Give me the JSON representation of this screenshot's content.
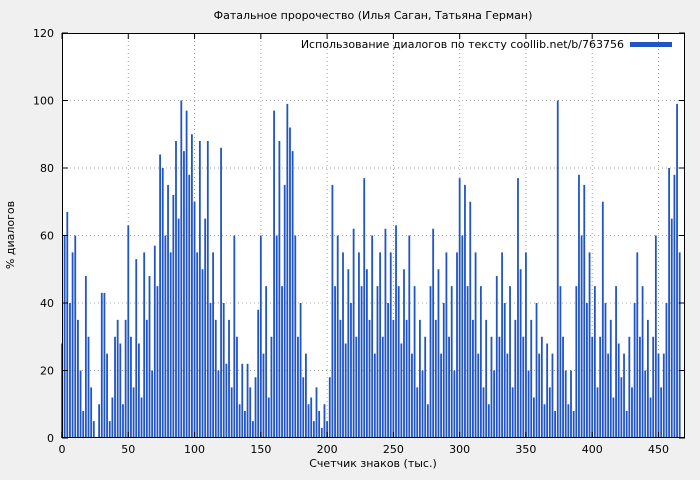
{
  "chart_data": {
    "type": "bar",
    "title": "Фатальное пророчество (Илья Саган, Татьяна Герман)",
    "legend_label": "Использование диалогов по тексту coollib.net/b/763756",
    "xlabel": "Счетчик знаков (тыс.)",
    "ylabel": "% диалогов",
    "xlim": [
      0,
      470
    ],
    "ylim": [
      0,
      120
    ],
    "x_ticks": [
      0,
      50,
      100,
      150,
      200,
      250,
      300,
      350,
      400,
      450
    ],
    "y_ticks": [
      0,
      20,
      40,
      60,
      80,
      100,
      120
    ],
    "grid": true,
    "legend_position": "top-right",
    "bar_color": "#2155c4",
    "background_color": "#f0f0f0",
    "plot_background": "#ffffff",
    "x": {
      "start": 0,
      "step": 2,
      "count": 234
    },
    "values": [
      28,
      60,
      67,
      40,
      55,
      60,
      35,
      20,
      8,
      48,
      30,
      15,
      5,
      0,
      10,
      43,
      43,
      25,
      5,
      12,
      30,
      35,
      28,
      10,
      35,
      63,
      30,
      15,
      53,
      28,
      12,
      55,
      35,
      48,
      20,
      57,
      45,
      84,
      80,
      60,
      75,
      55,
      72,
      88,
      65,
      100,
      85,
      97,
      78,
      90,
      70,
      55,
      88,
      50,
      65,
      88,
      40,
      55,
      35,
      20,
      86,
      40,
      22,
      35,
      15,
      60,
      30,
      10,
      22,
      8,
      22,
      15,
      5,
      18,
      38,
      60,
      25,
      45,
      12,
      30,
      97,
      60,
      88,
      45,
      75,
      99,
      92,
      85,
      60,
      30,
      40,
      18,
      25,
      10,
      12,
      5,
      15,
      8,
      3,
      10,
      5,
      18,
      75,
      45,
      60,
      35,
      55,
      28,
      50,
      40,
      62,
      30,
      55,
      45,
      77,
      50,
      35,
      60,
      25,
      45,
      55,
      30,
      62,
      40,
      55,
      35,
      63,
      45,
      28,
      50,
      35,
      60,
      25,
      45,
      15,
      35,
      20,
      30,
      10,
      45,
      62,
      35,
      50,
      25,
      40,
      55,
      30,
      45,
      20,
      55,
      77,
      60,
      75,
      45,
      70,
      35,
      55,
      25,
      45,
      15,
      35,
      10,
      30,
      20,
      48,
      30,
      55,
      40,
      25,
      45,
      15,
      35,
      77,
      50,
      30,
      55,
      20,
      35,
      12,
      40,
      25,
      30,
      10,
      28,
      15,
      25,
      8,
      100,
      45,
      30,
      20,
      10,
      20,
      8,
      45,
      78,
      60,
      75,
      40,
      55,
      30,
      45,
      15,
      30,
      70,
      40,
      25,
      35,
      12,
      45,
      28,
      18,
      25,
      8,
      30,
      15,
      40,
      55,
      30,
      45,
      20,
      35,
      12,
      30,
      60,
      25,
      15,
      25,
      40,
      80,
      65,
      78,
      99,
      55
    ]
  }
}
